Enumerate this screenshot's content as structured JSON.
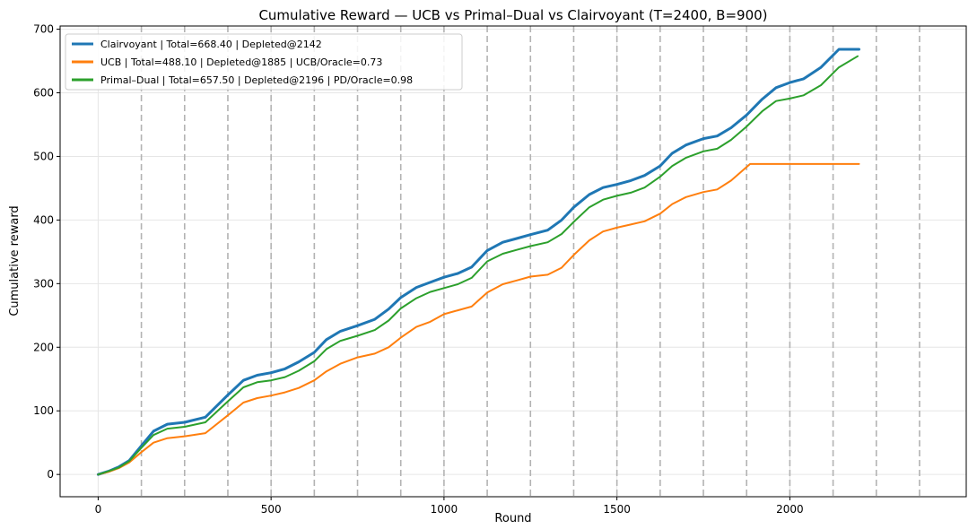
{
  "chart_data": {
    "type": "line",
    "title": "Cumulative Reward — UCB vs Primal–Dual vs Clairvoyant  (T=2400, B=900)",
    "xlabel": "Round",
    "ylabel": "Cumulative reward",
    "xlim": [
      -110,
      2510
    ],
    "ylim": [
      -35,
      705
    ],
    "xticks": [
      0,
      500,
      1000,
      1500,
      2000
    ],
    "yticks": [
      0,
      100,
      200,
      300,
      400,
      500,
      600,
      700
    ],
    "grid": true,
    "legend_position": "top-left",
    "vlines": [
      125,
      250,
      375,
      500,
      625,
      750,
      875,
      1000,
      1125,
      1250,
      1375,
      1500,
      1625,
      1750,
      1875,
      2000,
      2125,
      2250,
      2375
    ],
    "series": [
      {
        "name": "Clairvoyant | Total=668.40 | Depleted@2142",
        "color": "#1f77b4",
        "x": [
          0,
          30,
          60,
          90,
          125,
          160,
          200,
          250,
          310,
          375,
          420,
          460,
          500,
          540,
          580,
          625,
          660,
          700,
          750,
          800,
          840,
          875,
          920,
          960,
          1000,
          1040,
          1080,
          1125,
          1170,
          1210,
          1250,
          1300,
          1340,
          1375,
          1420,
          1460,
          1500,
          1540,
          1580,
          1625,
          1660,
          1700,
          1750,
          1790,
          1830,
          1875,
          1920,
          1960,
          2000,
          2040,
          2090,
          2142,
          2200
        ],
        "y": [
          0,
          5,
          12,
          22,
          45,
          68,
          79,
          82,
          90,
          125,
          148,
          156,
          160,
          166,
          177,
          192,
          212,
          225,
          234,
          244,
          260,
          278,
          294,
          302,
          310,
          316,
          326,
          352,
          365,
          371,
          377,
          384,
          400,
          420,
          440,
          451,
          456,
          462,
          470,
          485,
          505,
          518,
          528,
          532,
          545,
          565,
          590,
          608,
          616,
          622,
          640,
          668.4,
          668.4
        ]
      },
      {
        "name": "UCB | Total=488.10 | Depleted@1885 | UCB/Oracle=0.73",
        "color": "#ff7f0e",
        "x": [
          0,
          30,
          60,
          90,
          125,
          160,
          200,
          250,
          310,
          375,
          420,
          460,
          500,
          540,
          580,
          625,
          660,
          700,
          750,
          800,
          840,
          875,
          920,
          960,
          1000,
          1040,
          1080,
          1125,
          1170,
          1210,
          1250,
          1300,
          1340,
          1375,
          1420,
          1460,
          1500,
          1540,
          1580,
          1625,
          1660,
          1700,
          1750,
          1790,
          1830,
          1885,
          2000,
          2100,
          2200
        ],
        "y": [
          0,
          4,
          10,
          19,
          35,
          50,
          57,
          60,
          65,
          93,
          113,
          120,
          124,
          129,
          136,
          148,
          162,
          174,
          184,
          190,
          200,
          215,
          232,
          240,
          252,
          258,
          264,
          286,
          299,
          305,
          311,
          314,
          325,
          345,
          368,
          382,
          388,
          393,
          398,
          410,
          425,
          436,
          444,
          448,
          462,
          488.1,
          488.1,
          488.1,
          488.1
        ]
      },
      {
        "name": "Primal–Dual | Total=657.50 | Depleted@2196 | PD/Oracle=0.98",
        "color": "#2ca02c",
        "x": [
          0,
          30,
          60,
          90,
          125,
          160,
          200,
          250,
          310,
          375,
          420,
          460,
          500,
          540,
          580,
          625,
          660,
          700,
          750,
          800,
          840,
          875,
          920,
          960,
          1000,
          1040,
          1080,
          1125,
          1170,
          1210,
          1250,
          1300,
          1340,
          1375,
          1420,
          1460,
          1500,
          1540,
          1580,
          1625,
          1660,
          1700,
          1750,
          1790,
          1830,
          1875,
          1920,
          1960,
          2000,
          2040,
          2090,
          2142,
          2196
        ],
        "y": [
          0,
          5,
          11,
          21,
          42,
          62,
          72,
          75,
          82,
          115,
          137,
          145,
          148,
          153,
          163,
          178,
          197,
          210,
          218,
          227,
          242,
          261,
          277,
          287,
          293,
          299,
          309,
          335,
          347,
          353,
          359,
          365,
          378,
          397,
          420,
          432,
          438,
          443,
          451,
          468,
          485,
          498,
          508,
          512,
          526,
          547,
          571,
          587,
          591,
          596,
          612,
          640,
          657.5
        ]
      }
    ]
  }
}
